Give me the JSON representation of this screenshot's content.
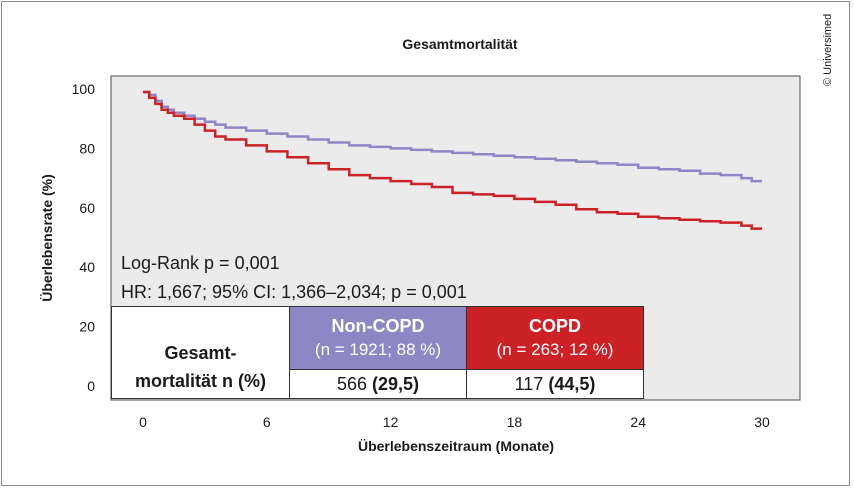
{
  "copyright": "© Universimed",
  "chart_data": {
    "type": "line",
    "title": "Gesamtmortalität",
    "xlabel": "Überlebenszeitraum (Monate)",
    "ylabel": "Überlebensrate (%)",
    "xlim": [
      0,
      30
    ],
    "ylim": [
      0,
      100
    ],
    "x_ticks": [
      0,
      6,
      12,
      18,
      24,
      30
    ],
    "y_ticks": [
      0,
      20,
      40,
      60,
      80,
      100
    ],
    "grid": false,
    "series": [
      {
        "name": "Non-COPD",
        "color": "#8e87c6",
        "x": [
          0,
          0.3,
          0.6,
          0.9,
          1.2,
          1.5,
          2.0,
          2.5,
          3.0,
          3.5,
          4.0,
          5.0,
          6.0,
          7.0,
          8.0,
          9.0,
          10.0,
          11.0,
          12.0,
          13.0,
          14.0,
          15.0,
          16.0,
          17.0,
          18.0,
          19.0,
          20.0,
          21.0,
          22.0,
          23.0,
          24.0,
          25.0,
          26.0,
          27.0,
          28.0,
          29.0,
          29.5,
          30.0
        ],
        "y": [
          99,
          98,
          96,
          94,
          93,
          92,
          91,
          90,
          89,
          88,
          87,
          86,
          85,
          84,
          83,
          82,
          81,
          80.5,
          80,
          79.5,
          79,
          78.5,
          78,
          77.5,
          77,
          76.5,
          76,
          75.5,
          75,
          74.5,
          73.5,
          73,
          72.5,
          71.5,
          71,
          70,
          69,
          69
        ]
      },
      {
        "name": "COPD",
        "color": "#cc2127",
        "x": [
          0,
          0.3,
          0.6,
          0.9,
          1.2,
          1.5,
          2.0,
          2.5,
          3.0,
          3.5,
          4.0,
          5.0,
          6.0,
          7.0,
          8.0,
          9.0,
          10.0,
          11.0,
          12.0,
          13.0,
          14.0,
          15.0,
          16.0,
          17.0,
          18.0,
          19.0,
          20.0,
          21.0,
          22.0,
          23.0,
          24.0,
          25.0,
          26.0,
          27.0,
          28.0,
          29.0,
          29.5,
          30.0
        ],
        "y": [
          99,
          97,
          95,
          93,
          92,
          91,
          90,
          88,
          86,
          84,
          83,
          81,
          79,
          77,
          75,
          73,
          71,
          70,
          69,
          68,
          67,
          65,
          64.5,
          64,
          63,
          62,
          61,
          59.5,
          58.5,
          58,
          57,
          56.5,
          56,
          55.5,
          55,
          54,
          53,
          53
        ]
      }
    ],
    "annotations": [
      "Log-Rank p = 0,001",
      "HR: 1,667; 95% CI: 1,366–2,034; p = 0,001"
    ],
    "table": {
      "row_label": "Gesamt-\nmortalität n (%)",
      "columns": [
        {
          "name": "Non-COPD",
          "sub": "(n = 1921; 88 %)",
          "value": "566 (29,5)",
          "value_plain": "566 ",
          "value_bold": "(29,5)",
          "color": "#8e87c6"
        },
        {
          "name": "COPD",
          "sub": "(n = 263; 12 %)",
          "value": "117 (44,5)",
          "value_plain": "117 ",
          "value_bold": "(44,5)",
          "color": "#cc2127"
        }
      ]
    }
  }
}
